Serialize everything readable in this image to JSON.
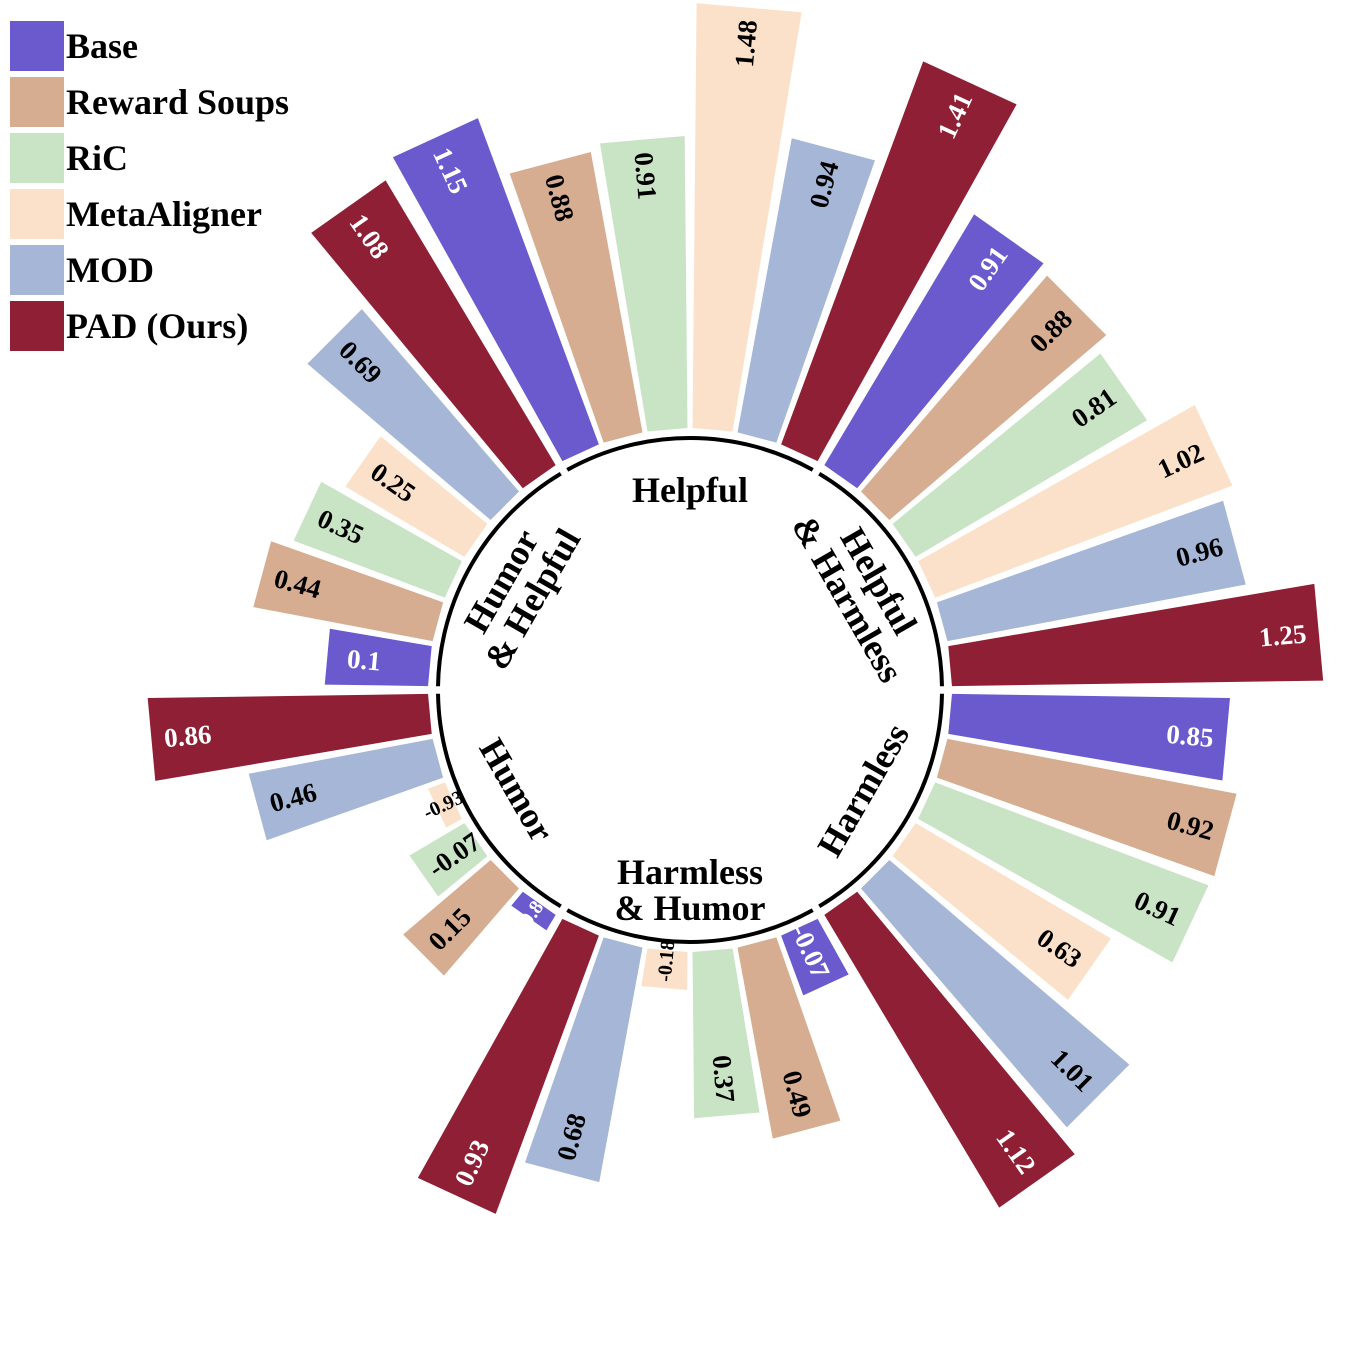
{
  "chart_data": {
    "type": "radial-bar",
    "legend": {
      "position": "top-left",
      "entries": [
        {
          "name": "Base",
          "color": "#6a5acd"
        },
        {
          "name": "Reward Soups",
          "color": "#d6ad90"
        },
        {
          "name": "RiC",
          "color": "#c9e3c5"
        },
        {
          "name": "MetaAligner",
          "color": "#fbe1c9"
        },
        {
          "name": "MOD",
          "color": "#a6b6d6"
        },
        {
          "name": "PAD (Ours)",
          "color": "#8e1f34"
        }
      ]
    },
    "series_names": [
      "Base",
      "Reward Soups",
      "RiC",
      "MetaAligner",
      "MOD",
      "PAD (Ours)"
    ],
    "groups": [
      {
        "label": [
          "Helpful"
        ],
        "values": [
          1.15,
          0.88,
          0.91,
          1.48,
          0.94,
          1.41
        ]
      },
      {
        "label": [
          "Helpful",
          "& Harmless"
        ],
        "values": [
          0.91,
          0.88,
          0.81,
          1.02,
          0.96,
          1.25
        ]
      },
      {
        "label": [
          "Harmless"
        ],
        "values": [
          0.85,
          0.92,
          0.91,
          0.63,
          1.01,
          1.12
        ]
      },
      {
        "label": [
          "Harmless",
          "& Humor"
        ],
        "values": [
          -0.07,
          0.49,
          0.37,
          -0.18,
          0.68,
          0.93
        ]
      },
      {
        "label": [
          "Humor"
        ],
        "values": [
          -0.83,
          0.15,
          -0.07,
          -0.93,
          0.46,
          0.86
        ]
      },
      {
        "label": [
          "Humor",
          "& Helpful"
        ],
        "values": [
          0.1,
          0.44,
          0.35,
          0.25,
          0.69,
          1.08
        ]
      }
    ],
    "grid": false
  }
}
